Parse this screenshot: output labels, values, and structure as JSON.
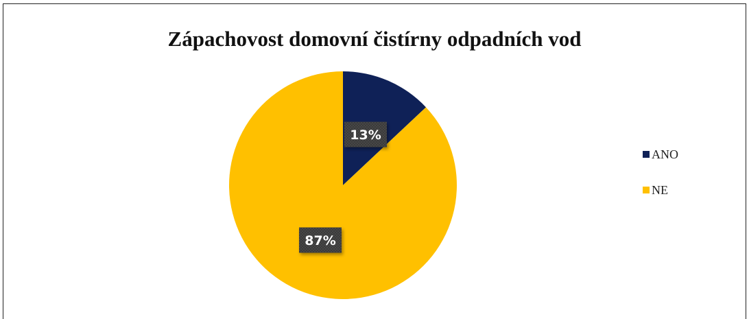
{
  "chart_data": {
    "type": "pie",
    "title": "Zápachovost domovní čistírny odpadních vod",
    "slices": [
      {
        "label": "ANO",
        "value": 13,
        "display": "13%",
        "color": "#0f2157"
      },
      {
        "label": "NE",
        "value": 87,
        "display": "87%",
        "color": "#ffc000"
      }
    ],
    "legend": "right",
    "data_labels": true
  }
}
